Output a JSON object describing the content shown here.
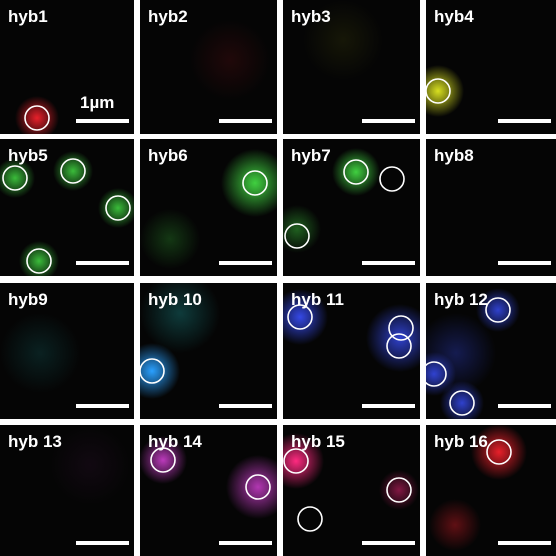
{
  "panels": [
    {
      "label": "hyb1"
    },
    {
      "label": "hyb2"
    },
    {
      "label": "hyb3"
    },
    {
      "label": "hyb4"
    },
    {
      "label": "hyb5"
    },
    {
      "label": "hyb6"
    },
    {
      "label": "hyb7"
    },
    {
      "label": "hyb8"
    },
    {
      "label": "hyb9"
    },
    {
      "label": "hyb 10"
    },
    {
      "label": "hyb 11"
    },
    {
      "label": "hyb 12"
    },
    {
      "label": "hyb 13"
    },
    {
      "label": "hyb 14"
    },
    {
      "label": "hyb 15"
    },
    {
      "label": "hyb 16"
    }
  ],
  "scale_label": "1µm"
}
